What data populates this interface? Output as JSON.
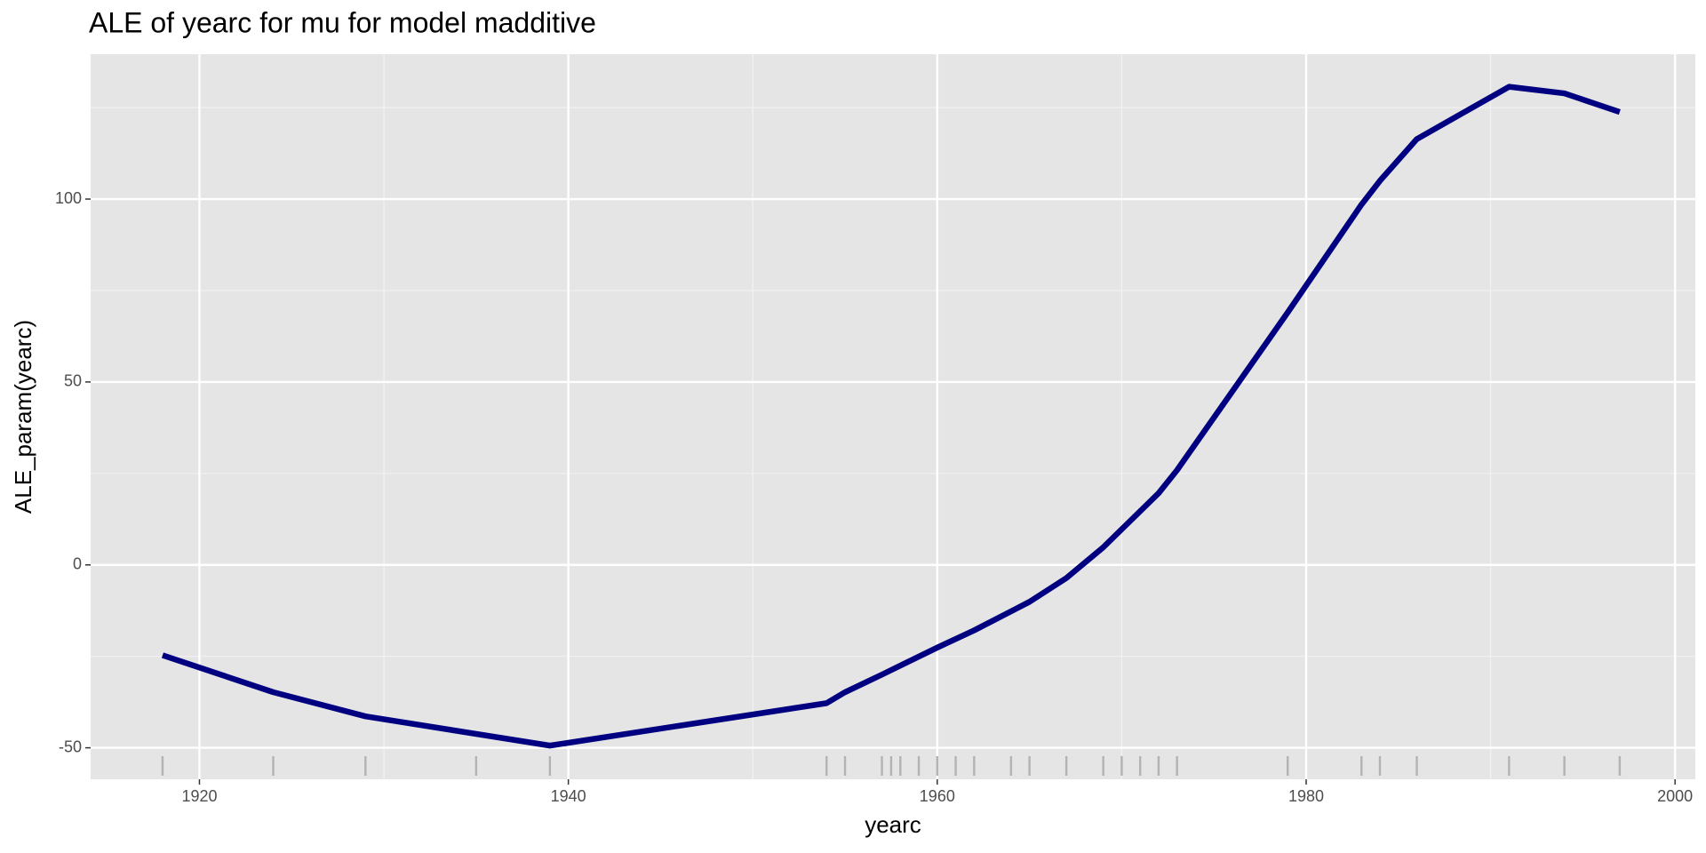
{
  "chart_data": {
    "type": "line",
    "title": "ALE of yearc for mu for model madditive",
    "x_label": "yearc",
    "y_label": "ALE_param(yearc)",
    "series": [
      {
        "name": "ALE",
        "color": "#000080",
        "x": [
          1918,
          1924,
          1929,
          1939,
          1954,
          1955,
          1957,
          1960,
          1962,
          1965,
          1967,
          1969,
          1972,
          1973,
          1979,
          1983,
          1984,
          1986,
          1991,
          1994,
          1997
        ],
        "values": [
          -24.7,
          -34.8,
          -41.4,
          -49.4,
          -37.8,
          -34.8,
          -30,
          -22.6,
          -17.9,
          -10.1,
          -3.6,
          4.8,
          19.6,
          25.9,
          69,
          98.5,
          105,
          116.4,
          130.7,
          128.9,
          123.8
        ]
      }
    ],
    "rug": [
      1918,
      1924,
      1929,
      1935,
      1939,
      1954,
      1955,
      1957,
      1957.5,
      1958,
      1959,
      1960,
      1961,
      1962,
      1964,
      1965,
      1967,
      1969,
      1970,
      1971,
      1972,
      1973,
      1979,
      1983,
      1984,
      1986,
      1991,
      1994,
      1997
    ],
    "rug_color": "#b3b3b3",
    "xlim": [
      1914.1,
      2001.1
    ],
    "xticks": [
      1920,
      1940,
      1960,
      1980,
      2000
    ],
    "ylim": [
      -58.6,
      139.6
    ],
    "yticks": [
      -50,
      0,
      50,
      100
    ],
    "grid": true
  }
}
